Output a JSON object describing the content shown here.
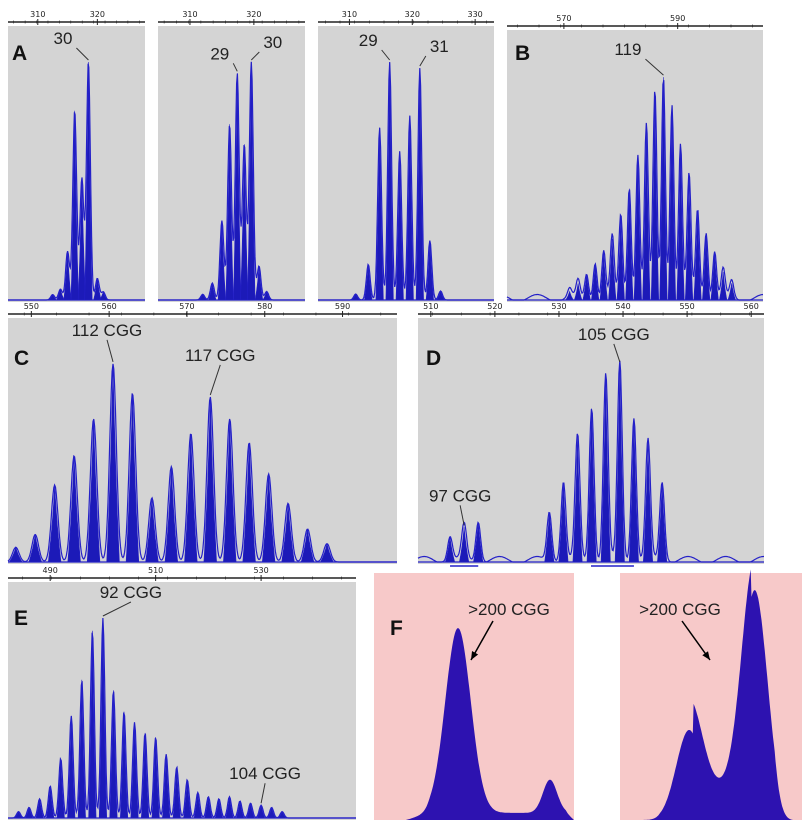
{
  "figure": {
    "colors": {
      "plot_bg": "#d4d4d4",
      "peak_fill": "#1c1ab8",
      "peak_stroke": "#2420c8",
      "axis": "#222222",
      "pink_bg": "#f7c9c9",
      "pink_fill": "#2d12b0"
    }
  },
  "chart_data": [
    {
      "id": "a1",
      "type": "area",
      "panel_label": "A",
      "x_ticks": [
        "310",
        "320"
      ],
      "xlim": [
        305,
        328
      ],
      "peaks": [
        [
          312.5,
          2
        ],
        [
          313.8,
          4
        ],
        [
          315,
          18
        ],
        [
          316.2,
          70
        ],
        [
          317.4,
          45
        ],
        [
          318.5,
          88
        ],
        [
          320,
          8
        ],
        [
          321,
          3
        ]
      ],
      "annotations": [
        {
          "text": "30",
          "x": 318.5
        }
      ]
    },
    {
      "id": "a2",
      "type": "area",
      "panel_label": "",
      "x_ticks": [
        "310",
        "320"
      ],
      "xlim": [
        305,
        328
      ],
      "peaks": [
        [
          312,
          2
        ],
        [
          313.5,
          6
        ],
        [
          315,
          28
        ],
        [
          316.2,
          62
        ],
        [
          317.4,
          80
        ],
        [
          318.5,
          55
        ],
        [
          319.6,
          84
        ],
        [
          320.8,
          12
        ],
        [
          322,
          3
        ]
      ],
      "annotations": [
        {
          "text": "29",
          "x": 317.4
        },
        {
          "text": "30",
          "x": 319.6
        }
      ]
    },
    {
      "id": "a3",
      "type": "area",
      "panel_label": "",
      "x_ticks": [
        "310",
        "320",
        "330"
      ],
      "xlim": [
        305,
        333
      ],
      "peaks": [
        [
          311,
          2
        ],
        [
          313,
          12
        ],
        [
          314.8,
          58
        ],
        [
          316.4,
          80
        ],
        [
          318,
          50
        ],
        [
          319.6,
          62
        ],
        [
          321.2,
          78
        ],
        [
          322.8,
          20
        ],
        [
          324.5,
          3
        ]
      ],
      "annotations": [
        {
          "text": "29",
          "x": 316.4
        },
        {
          "text": "31",
          "x": 321.2
        }
      ]
    },
    {
      "id": "b",
      "type": "area",
      "panel_label": "B",
      "x_ticks": [
        "570",
        "590"
      ],
      "xlim": [
        560,
        605
      ],
      "peaks": [
        [
          571,
          3
        ],
        [
          572.5,
          6
        ],
        [
          574,
          9
        ],
        [
          575.5,
          13
        ],
        [
          577,
          17
        ],
        [
          578.5,
          22
        ],
        [
          580,
          30
        ],
        [
          581.5,
          40
        ],
        [
          583,
          52
        ],
        [
          584.5,
          62
        ],
        [
          586,
          74
        ],
        [
          587.5,
          80
        ],
        [
          589,
          70
        ],
        [
          590.5,
          55
        ],
        [
          592,
          44
        ],
        [
          593.5,
          32
        ],
        [
          595,
          24
        ],
        [
          596.5,
          17
        ],
        [
          598,
          10
        ],
        [
          599.5,
          6
        ]
      ],
      "annotations": [
        {
          "text": "119",
          "x": 587.5
        }
      ]
    },
    {
      "id": "c",
      "type": "area",
      "panel_label": "C",
      "x_ticks": [
        "550",
        "560",
        "570",
        "580",
        "590"
      ],
      "xlim": [
        547,
        597
      ],
      "peaks": [
        [
          548,
          8
        ],
        [
          550.5,
          15
        ],
        [
          553,
          42
        ],
        [
          555.5,
          58
        ],
        [
          558,
          78
        ],
        [
          560.5,
          108
        ],
        [
          563,
          92
        ],
        [
          565.5,
          35
        ],
        [
          568,
          52
        ],
        [
          570.5,
          70
        ],
        [
          573,
          90
        ],
        [
          575.5,
          78
        ],
        [
          578,
          65
        ],
        [
          580.5,
          48
        ],
        [
          583,
          32
        ],
        [
          585.5,
          18
        ],
        [
          588,
          10
        ]
      ],
      "annotations": [
        {
          "text": "112 CGG",
          "x": 560.5
        },
        {
          "text": "117 CGG",
          "x": 573
        }
      ]
    },
    {
      "id": "d",
      "type": "area",
      "panel_label": "D",
      "x_ticks": [
        "510",
        "520",
        "530",
        "540",
        "550",
        "560"
      ],
      "xlim": [
        508,
        562
      ],
      "peaks": [
        [
          513,
          10
        ],
        [
          515.2,
          14
        ],
        [
          517.4,
          16
        ],
        [
          528.5,
          20
        ],
        [
          530.7,
          32
        ],
        [
          532.9,
          50
        ],
        [
          535.1,
          62
        ],
        [
          537.3,
          75
        ],
        [
          539.5,
          80
        ],
        [
          541.7,
          58
        ],
        [
          543.9,
          48
        ],
        [
          546.1,
          32
        ]
      ],
      "annotations": [
        {
          "text": "97 CGG",
          "x": 515.2
        },
        {
          "text": "105 CGG",
          "x": 539.5
        }
      ]
    },
    {
      "id": "e",
      "type": "area",
      "panel_label": "E",
      "x_ticks": [
        "490",
        "510",
        "530"
      ],
      "xlim": [
        482,
        548
      ],
      "peaks": [
        [
          484,
          3
        ],
        [
          486,
          5
        ],
        [
          488,
          9
        ],
        [
          490,
          15
        ],
        [
          492,
          28
        ],
        [
          494,
          48
        ],
        [
          496,
          65
        ],
        [
          498,
          88
        ],
        [
          500,
          94
        ],
        [
          502,
          60
        ],
        [
          504,
          50
        ],
        [
          506,
          45
        ],
        [
          508,
          40
        ],
        [
          510,
          38
        ],
        [
          512,
          30
        ],
        [
          514,
          24
        ],
        [
          516,
          18
        ],
        [
          518,
          12
        ],
        [
          520,
          10
        ],
        [
          522,
          9
        ],
        [
          524,
          10
        ],
        [
          526,
          8
        ],
        [
          528,
          7
        ],
        [
          530,
          6
        ],
        [
          532,
          5
        ],
        [
          534,
          3
        ]
      ],
      "annotations": [
        {
          "text": "92 CGG",
          "x": 500
        },
        {
          "text": "104 CGG",
          "x": 531
        }
      ]
    },
    {
      "id": "f1",
      "type": "area",
      "panel_label": "F",
      "profile": "low-large-peak",
      "annotations": [
        {
          "text": ">200 CGG"
        }
      ]
    },
    {
      "id": "f2",
      "type": "area",
      "panel_label": "",
      "profile": "high-large-peak",
      "annotations": [
        {
          "text": ">200 CGG"
        }
      ]
    }
  ]
}
